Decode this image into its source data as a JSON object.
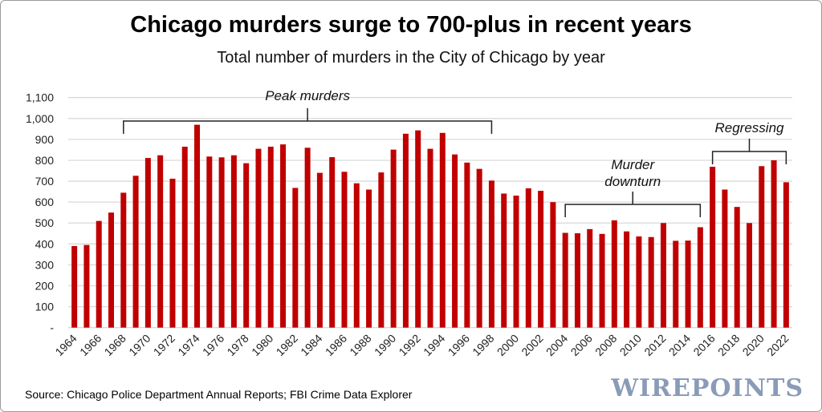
{
  "chart_data": {
    "type": "bar",
    "title": "Chicago murders surge to 700-plus in recent years",
    "subtitle": "Total number of murders in the City of Chicago by year",
    "xlabel": "",
    "ylabel": "",
    "ylim": [
      0,
      1100
    ],
    "yticks": [
      0,
      100,
      200,
      300,
      400,
      500,
      600,
      700,
      800,
      900,
      1000,
      1100
    ],
    "ytick_labels": [
      "-",
      "100",
      "200",
      "300",
      "400",
      "500",
      "600",
      "700",
      "800",
      "900",
      "1,000",
      "1,100"
    ],
    "grid": true,
    "bar_color": "#c00000",
    "categories": [
      1964,
      1965,
      1966,
      1967,
      1968,
      1969,
      1970,
      1971,
      1972,
      1973,
      1974,
      1975,
      1976,
      1977,
      1978,
      1979,
      1980,
      1981,
      1982,
      1983,
      1984,
      1985,
      1986,
      1987,
      1988,
      1989,
      1990,
      1991,
      1992,
      1993,
      1994,
      1995,
      1996,
      1997,
      1998,
      1999,
      2000,
      2001,
      2002,
      2003,
      2004,
      2005,
      2006,
      2007,
      2008,
      2009,
      2010,
      2011,
      2012,
      2013,
      2014,
      2015,
      2016,
      2017,
      2018,
      2019,
      2020,
      2021,
      2022
    ],
    "values": [
      390,
      395,
      510,
      550,
      645,
      726,
      811,
      824,
      712,
      865,
      970,
      818,
      814,
      824,
      786,
      855,
      865,
      876,
      668,
      860,
      740,
      815,
      745,
      690,
      660,
      742,
      851,
      927,
      943,
      855,
      931,
      828,
      789,
      759,
      703,
      641,
      631,
      666,
      654,
      600,
      453,
      451,
      471,
      448,
      513,
      460,
      436,
      433,
      500,
      415,
      416,
      480,
      769,
      660,
      577,
      500,
      772,
      800,
      695
    ],
    "annotations": [
      {
        "text": "Peak murders",
        "from": 1968,
        "to": 1998
      },
      {
        "text": "Murder downturn",
        "lines": [
          "Murder",
          "downturn"
        ],
        "from": 2004,
        "to": 2015
      },
      {
        "text": "Regressing",
        "from": 2016,
        "to": 2022
      }
    ]
  },
  "source": "Source: Chicago Police Department Annual Reports; FBI Crime Data Explorer",
  "logo": "WIREPOINTS"
}
